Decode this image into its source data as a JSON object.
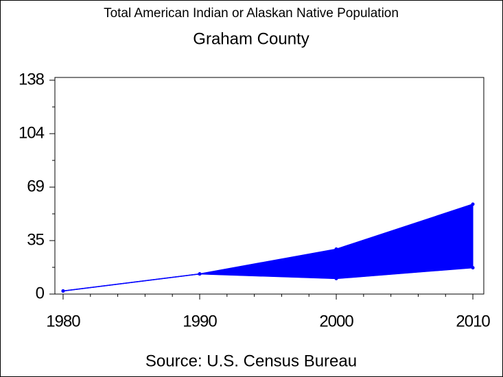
{
  "chart_data": {
    "type": "range-area",
    "title": "Total American Indian or Alaskan Native Population",
    "subtitle": "Graham County",
    "source": "Source: U.S. Census Bureau",
    "x": [
      1980,
      1990,
      2000,
      2010
    ],
    "series": [
      {
        "color": "#0000ff",
        "values": [
          2,
          13,
          10,
          17
        ]
      },
      {
        "color": "#0000ff",
        "values": [
          2,
          13,
          29,
          58
        ]
      }
    ],
    "xlim": [
      1979.4,
      2010.8
    ],
    "xticks": [
      1980,
      1990,
      2000,
      2010
    ],
    "ylim": [
      0,
      138
    ],
    "yticks": [
      0,
      {
        "value": 34.5,
        "label": "35"
      },
      69,
      {
        "value": 103.5,
        "label": "104"
      },
      138
    ]
  }
}
